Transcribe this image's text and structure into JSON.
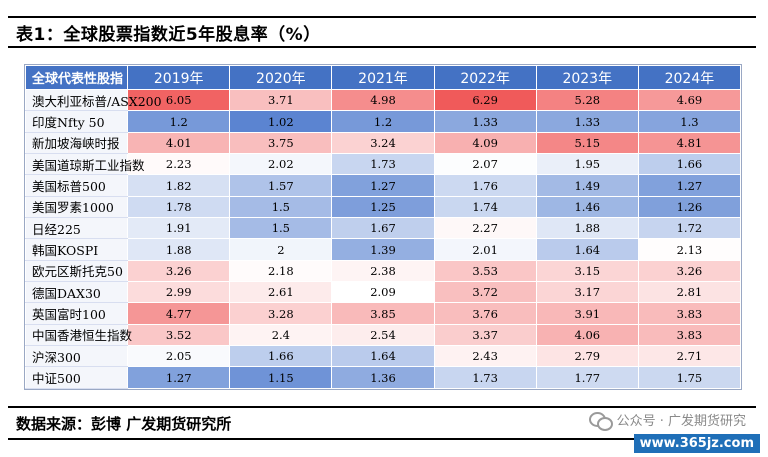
{
  "title": "表1：全球股票指数近5年股息率（%）",
  "source": "数据来源：彭博  广发期货研究所",
  "watermark": {
    "icon": "wechat-icon",
    "text": "公众号 · 广发期货研究"
  },
  "site": "www.365jz.com",
  "colors": {
    "header": "#4472c4",
    "low": "#5b84d1",
    "mid": "#ffffff",
    "high": "#f05a5a"
  },
  "chart_data": {
    "type": "table",
    "corner_label": "全球代表性股指",
    "columns": [
      "2019年",
      "2020年",
      "2021年",
      "2022年",
      "2023年",
      "2024年"
    ],
    "rows": [
      {
        "name": "澳大利亚标普/ASX200",
        "values": [
          "6.05",
          "3.71",
          "4.98",
          "6.29",
          "5.28",
          "4.69"
        ]
      },
      {
        "name": "印度Nfty 50",
        "values": [
          "1.2",
          "1.02",
          "1.2",
          "1.33",
          "1.33",
          "1.3"
        ]
      },
      {
        "name": "新加坡海峡时报",
        "values": [
          "4.01",
          "3.75",
          "3.24",
          "4.09",
          "5.15",
          "4.81"
        ]
      },
      {
        "name": "美国道琼斯工业指数",
        "values": [
          "2.23",
          "2.02",
          "1.73",
          "2.07",
          "1.95",
          "1.66"
        ]
      },
      {
        "name": "美国标普500",
        "values": [
          "1.82",
          "1.57",
          "1.27",
          "1.76",
          "1.49",
          "1.27"
        ]
      },
      {
        "name": "美国罗素1000",
        "values": [
          "1.78",
          "1.5",
          "1.25",
          "1.74",
          "1.46",
          "1.26"
        ]
      },
      {
        "name": "日经225",
        "values": [
          "1.91",
          "1.5",
          "1.67",
          "2.27",
          "1.88",
          "1.72"
        ]
      },
      {
        "name": "韩国KOSPI",
        "values": [
          "1.88",
          "2",
          "1.39",
          "2.01",
          "1.64",
          "2.13"
        ]
      },
      {
        "name": "欧元区斯托克50",
        "values": [
          "3.26",
          "2.18",
          "2.38",
          "3.53",
          "3.15",
          "3.26"
        ]
      },
      {
        "name": "德国DAX30",
        "values": [
          "2.99",
          "2.61",
          "2.09",
          "3.72",
          "3.17",
          "2.81"
        ]
      },
      {
        "name": "英国富时100",
        "values": [
          "4.77",
          "3.28",
          "3.85",
          "3.76",
          "3.91",
          "3.83"
        ]
      },
      {
        "name": "中国香港恒生指数",
        "values": [
          "3.52",
          "2.4",
          "2.54",
          "3.37",
          "4.06",
          "3.83"
        ]
      },
      {
        "name": "沪深300",
        "values": [
          "2.05",
          "1.66",
          "1.64",
          "2.43",
          "2.79",
          "2.71"
        ]
      },
      {
        "name": "中证500",
        "values": [
          "1.27",
          "1.15",
          "1.36",
          "1.73",
          "1.77",
          "1.75"
        ]
      }
    ]
  }
}
